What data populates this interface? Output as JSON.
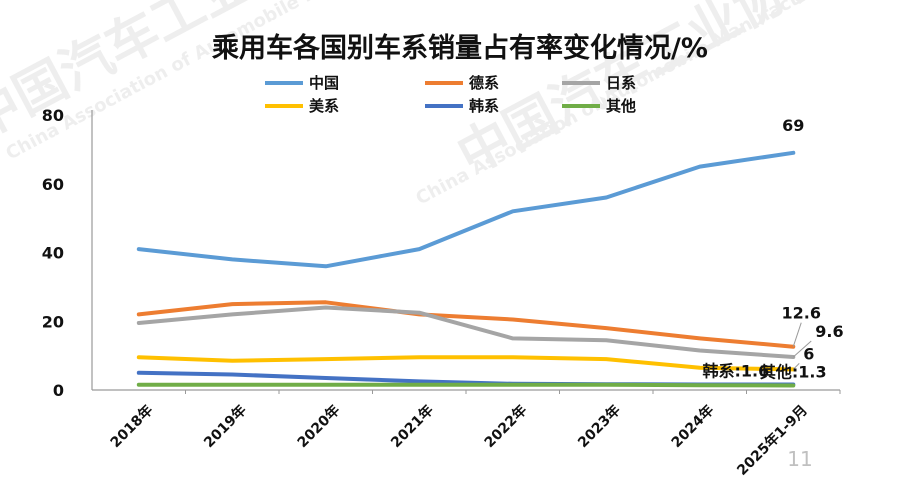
{
  "page_number": "11",
  "watermark": {
    "cn": "中国汽车工业协会",
    "en": "China Association of Automobile Manufacturers"
  },
  "chart_data": {
    "type": "line",
    "title": "乘用车各国别车系销量占有率变化情况/%",
    "xlabel": "",
    "ylabel": "",
    "categories": [
      "2018年",
      "2019年",
      "2020年",
      "2021年",
      "2022年",
      "2023年",
      "2024年",
      "2025年1-9月"
    ],
    "ylim": [
      0,
      80
    ],
    "yticks": [
      0,
      20,
      40,
      60,
      80
    ],
    "grid": false,
    "legend_position": "top",
    "series": [
      {
        "name": "中国",
        "color": "#5b9bd5",
        "values": [
          41,
          38,
          36,
          41,
          52,
          56,
          65,
          69
        ]
      },
      {
        "name": "德系",
        "color": "#ed7d31",
        "values": [
          22,
          25,
          25.5,
          22,
          20.5,
          18,
          15,
          12.6
        ]
      },
      {
        "name": "日系",
        "color": "#a5a5a5",
        "values": [
          19.5,
          22,
          24,
          22.5,
          15,
          14.5,
          11.5,
          9.6
        ]
      },
      {
        "name": "美系",
        "color": "#ffc000",
        "values": [
          9.5,
          8.5,
          9,
          9.5,
          9.5,
          9,
          6.5,
          6
        ]
      },
      {
        "name": "韩系",
        "color": "#4472c4",
        "values": [
          5,
          4.5,
          3.5,
          2.5,
          1.8,
          1.7,
          1.6,
          1.6
        ]
      },
      {
        "name": "其他",
        "color": "#70ad47",
        "values": [
          1.5,
          1.5,
          1.5,
          1.5,
          1.5,
          1.5,
          1.4,
          1.3
        ]
      }
    ],
    "annotations": [
      {
        "series": "中国",
        "text": "69"
      },
      {
        "series": "德系",
        "text": "12.6"
      },
      {
        "series": "日系",
        "text": "9.6"
      },
      {
        "series": "美系",
        "text": "6"
      },
      {
        "series": "韩系",
        "text": "韩系:1.6"
      },
      {
        "series": "其他",
        "text": "其他:1.3"
      }
    ]
  }
}
